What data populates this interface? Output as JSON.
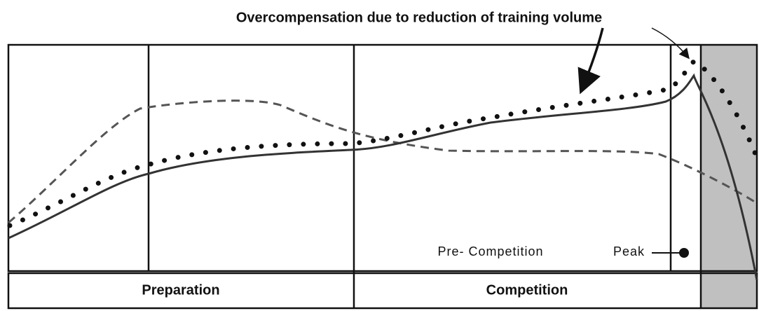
{
  "annotation": "Overcompensation due to reduction of training volume",
  "sub_phases": {
    "pre_competition": "Pre- Competition",
    "peak": "Peak"
  },
  "phases": [
    "Preparation",
    "Competition"
  ]
}
